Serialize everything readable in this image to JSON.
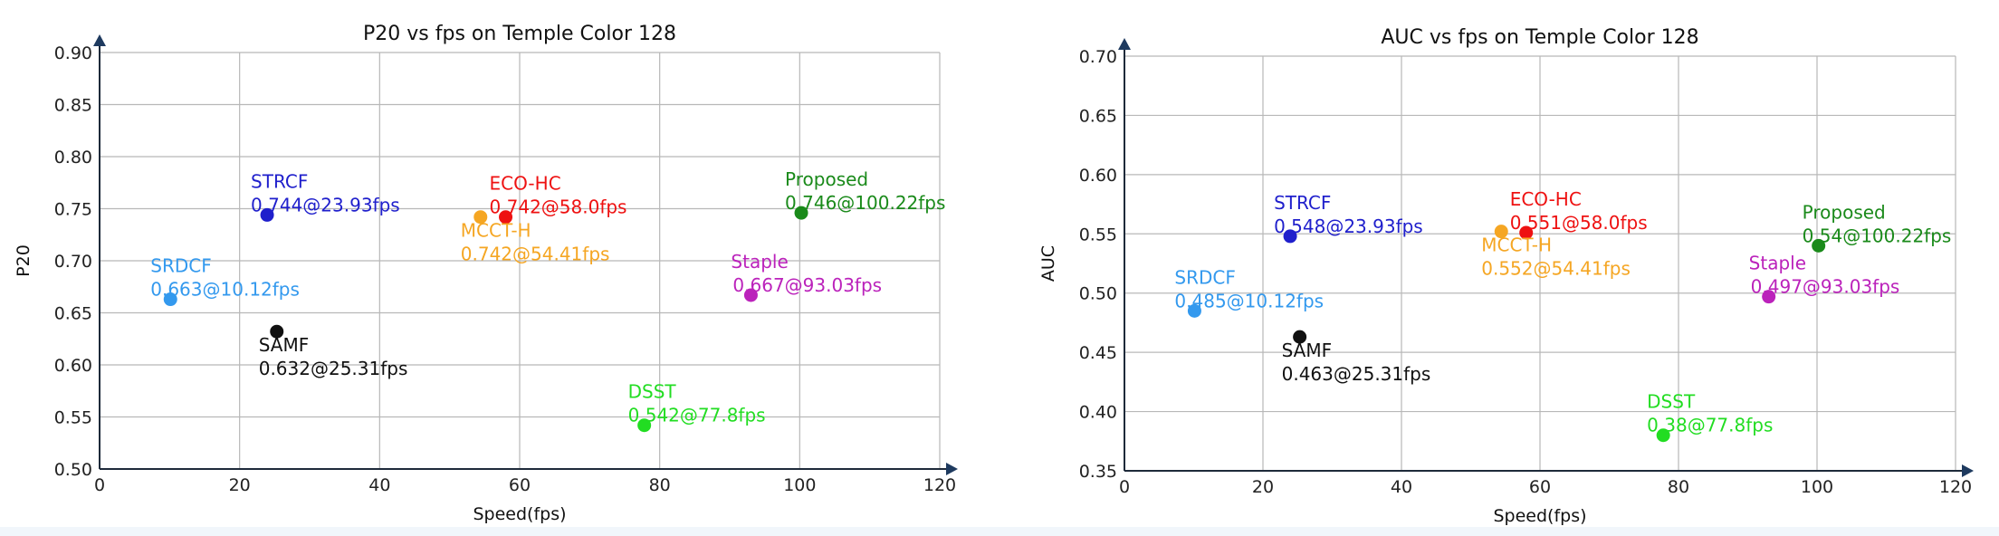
{
  "chart_data": [
    {
      "type": "scatter",
      "title": "P20 vs fps on Temple Color 128",
      "xlabel": "Speed(fps)",
      "ylabel": "P20",
      "xlim": [
        0,
        120
      ],
      "ylim": [
        0.5,
        0.9
      ],
      "xticks": [
        "0",
        "20",
        "40",
        "60",
        "80",
        "100",
        "120"
      ],
      "yticks": [
        "0.50",
        "0.55",
        "0.60",
        "0.65",
        "0.70",
        "0.75",
        "0.80",
        "0.85",
        "0.90"
      ],
      "grid": true,
      "points": [
        {
          "name": "STRCF",
          "value_label": "0.744@23.93fps",
          "x": 23.93,
          "y": 0.744,
          "color": "#1f1fcc",
          "label_pos": "above"
        },
        {
          "name": "ECO-HC",
          "value_label": "0.742@58.0fps",
          "x": 58.0,
          "y": 0.742,
          "color": "#ee1111",
          "label_pos": "above"
        },
        {
          "name": "MCCT-H",
          "value_label": "0.742@54.41fps",
          "x": 54.41,
          "y": 0.742,
          "color": "#f5a623",
          "label_pos": "below"
        },
        {
          "name": "Proposed",
          "value_label": "0.746@100.22fps",
          "x": 100.22,
          "y": 0.746,
          "color": "#1a8a1a",
          "label_pos": "above"
        },
        {
          "name": "SRDCF",
          "value_label": "0.663@10.12fps",
          "x": 10.12,
          "y": 0.663,
          "color": "#3399ee",
          "label_pos": "above"
        },
        {
          "name": "Staple",
          "value_label": "0.667@93.03fps",
          "x": 93.03,
          "y": 0.667,
          "color": "#bb22bb",
          "label_pos": "above"
        },
        {
          "name": "SAMF",
          "value_label": "0.632@25.31fps",
          "x": 25.31,
          "y": 0.632,
          "color": "#111111",
          "label_pos": "below"
        },
        {
          "name": "DSST",
          "value_label": "0.542@77.8fps",
          "x": 77.8,
          "y": 0.542,
          "color": "#22dd22",
          "label_pos": "above"
        }
      ]
    },
    {
      "type": "scatter",
      "title": "AUC vs fps on Temple Color 128",
      "xlabel": "Speed(fps)",
      "ylabel": "AUC",
      "xlim": [
        0,
        120
      ],
      "ylim": [
        0.35,
        0.7
      ],
      "xticks": [
        "0",
        "20",
        "40",
        "60",
        "80",
        "100",
        "120"
      ],
      "yticks": [
        "0.35",
        "0.40",
        "0.45",
        "0.50",
        "0.55",
        "0.60",
        "0.65",
        "0.70"
      ],
      "grid": true,
      "points": [
        {
          "name": "STRCF",
          "value_label": "0.548@23.93fps",
          "x": 23.93,
          "y": 0.548,
          "color": "#1f1fcc",
          "label_pos": "above"
        },
        {
          "name": "ECO-HC",
          "value_label": "0.551@58.0fps",
          "x": 58.0,
          "y": 0.551,
          "color": "#ee1111",
          "label_pos": "above"
        },
        {
          "name": "MCCT-H",
          "value_label": "0.552@54.41fps",
          "x": 54.41,
          "y": 0.552,
          "color": "#f5a623",
          "label_pos": "below"
        },
        {
          "name": "Proposed",
          "value_label": "0.54@100.22fps",
          "x": 100.22,
          "y": 0.54,
          "color": "#1a8a1a",
          "label_pos": "above"
        },
        {
          "name": "SRDCF",
          "value_label": "0.485@10.12fps",
          "x": 10.12,
          "y": 0.485,
          "color": "#3399ee",
          "label_pos": "above"
        },
        {
          "name": "Staple",
          "value_label": "0.497@93.03fps",
          "x": 93.03,
          "y": 0.497,
          "color": "#bb22bb",
          "label_pos": "above"
        },
        {
          "name": "SAMF",
          "value_label": "0.463@25.31fps",
          "x": 25.31,
          "y": 0.463,
          "color": "#111111",
          "label_pos": "below"
        },
        {
          "name": "DSST",
          "value_label": "0.38@77.8fps",
          "x": 77.8,
          "y": 0.38,
          "color": "#22dd22",
          "label_pos": "above"
        }
      ]
    }
  ]
}
